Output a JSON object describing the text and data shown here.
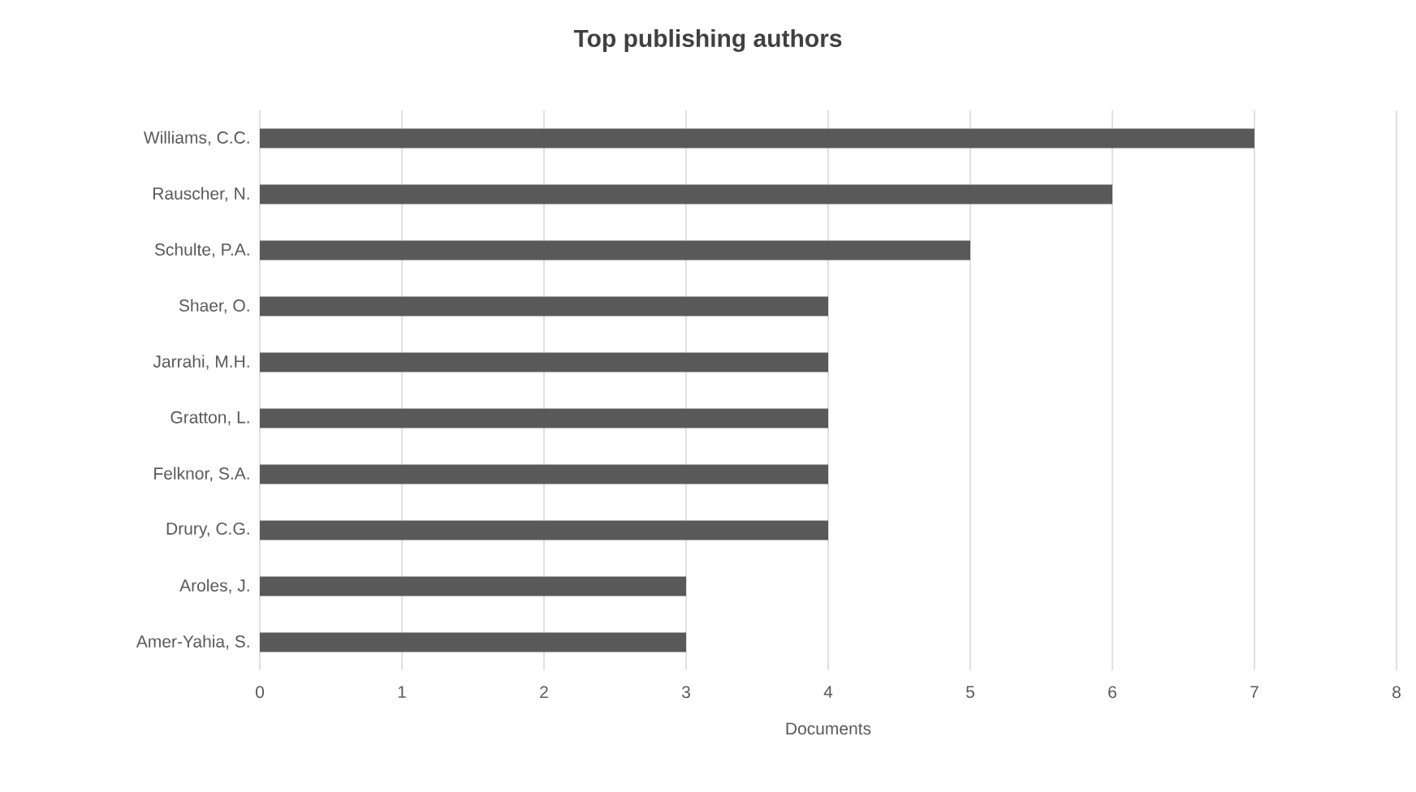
{
  "chart_data": {
    "type": "bar",
    "orientation": "horizontal",
    "title": "Top publishing authors",
    "xlabel": "Documents",
    "categories": [
      "Williams, C.C.",
      "Rauscher, N.",
      "Schulte, P.A.",
      "Shaer, O.",
      "Jarrahi, M.H.",
      "Gratton, L.",
      "Felknor, S.A.",
      "Drury, C.G.",
      "Aroles, J.",
      "Amer-Yahia, S."
    ],
    "values": [
      7,
      6,
      5,
      4,
      4,
      4,
      4,
      4,
      3,
      3
    ],
    "color": "#595959",
    "xlim": [
      0,
      8
    ],
    "xticks": [
      0,
      1,
      2,
      3,
      4,
      5,
      6,
      7,
      8
    ],
    "grid": "x"
  }
}
